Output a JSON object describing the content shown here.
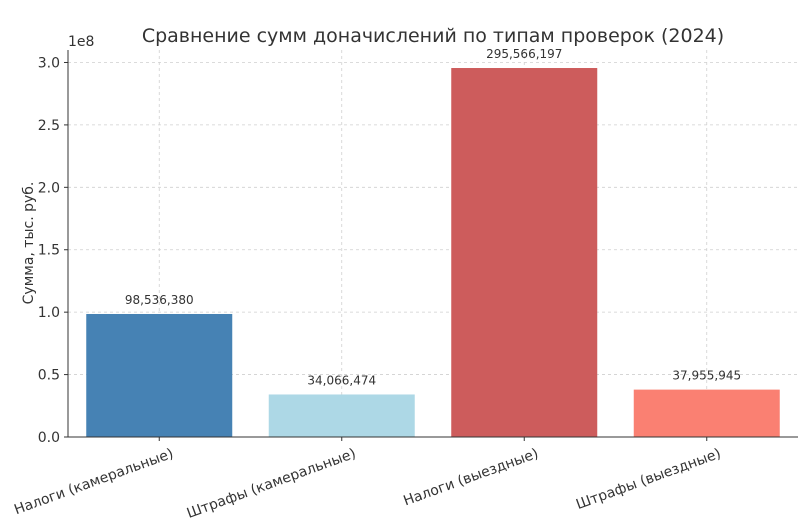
{
  "chart_data": {
    "type": "bar",
    "title": "Сравнение сумм доначислений по типам проверок (2024)",
    "xlabel": "",
    "ylabel": "Сумма, тыс. руб.",
    "y_offset_label": "1e8",
    "ylim": [
      0,
      310000000
    ],
    "yticks": [
      0,
      50000000,
      100000000,
      150000000,
      200000000,
      250000000,
      300000000
    ],
    "ytick_labels": [
      "0.0",
      "0.5",
      "1.0",
      "1.5",
      "2.0",
      "2.5",
      "3.0"
    ],
    "grid": true,
    "categories": [
      "Налоги (камеральные)",
      "Штрафы (камеральные)",
      "Налоги (выездные)",
      "Штрафы (выездные)"
    ],
    "values": [
      98536380,
      34066474,
      295566197,
      37955945
    ],
    "value_labels": [
      "98,536,380",
      "34,066,474",
      "295,566,197",
      "37,955,945"
    ],
    "colors": [
      "#4682b4",
      "#add8e6",
      "#cd5c5c",
      "#fa8072"
    ]
  }
}
